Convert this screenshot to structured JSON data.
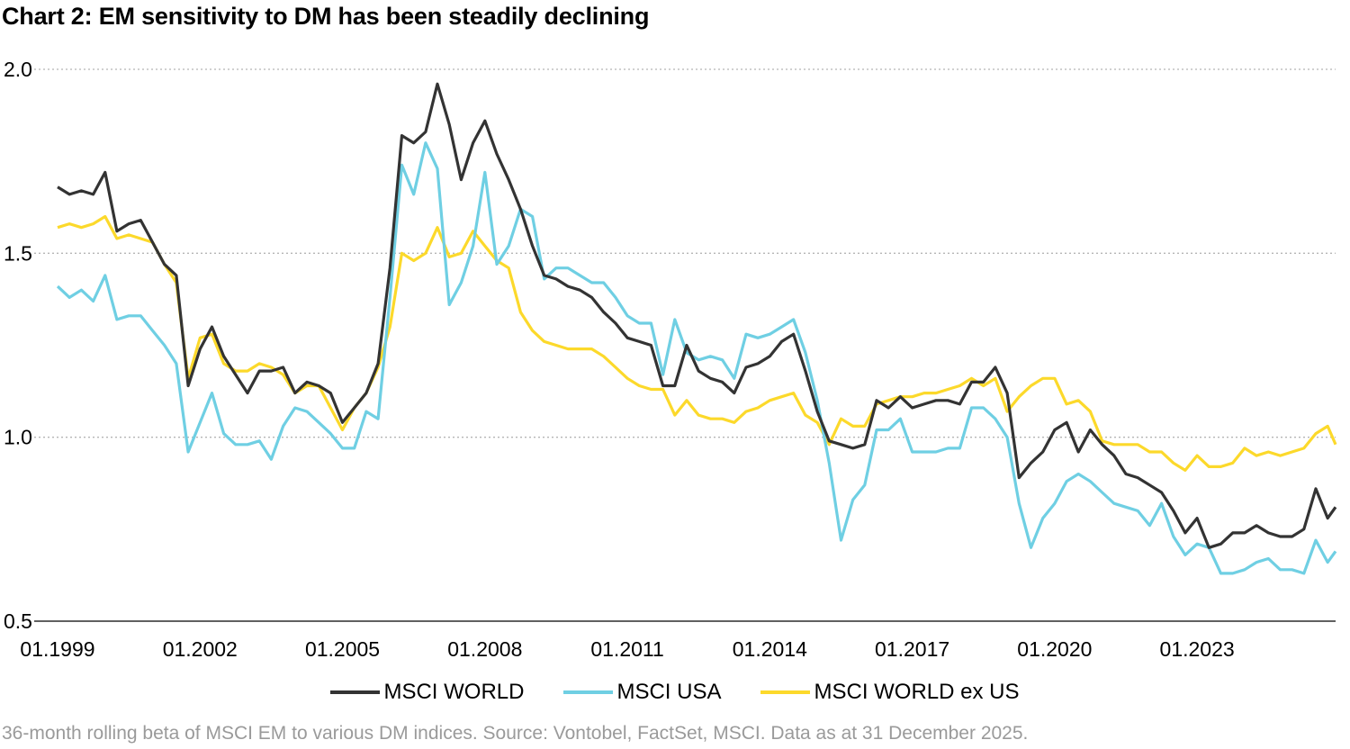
{
  "title": "Chart 2: EM sensitivity to DM has been steadily declining",
  "footer": "36-month rolling beta of MSCI EM to various DM indices. Source: Vontobel, FactSet, MSCI. Data as at 31 December 2025.",
  "chart_data": {
    "type": "line",
    "title": "Chart 2: EM sensitivity to DM has been steadily declining",
    "xlabel": "",
    "ylabel": "",
    "ylim": [
      0.5,
      2.0
    ],
    "yticks": [
      "0.5",
      "1.0",
      "1.5",
      "2.0"
    ],
    "xlim": [
      "1999-01",
      "2025-12"
    ],
    "xticks": [
      "01.1999",
      "01.2002",
      "01.2005",
      "01.2008",
      "01.2011",
      "01.2014",
      "01.2017",
      "01.2020",
      "01.2023"
    ],
    "grid": "horizontal dotted",
    "legend": "bottom",
    "x": [
      "1999-01",
      "1999-04",
      "1999-07",
      "1999-10",
      "2000-01",
      "2000-04",
      "2000-07",
      "2000-10",
      "2001-01",
      "2001-04",
      "2001-07",
      "2001-10",
      "2002-01",
      "2002-04",
      "2002-07",
      "2002-10",
      "2003-01",
      "2003-04",
      "2003-07",
      "2003-10",
      "2004-01",
      "2004-04",
      "2004-07",
      "2004-10",
      "2005-01",
      "2005-04",
      "2005-07",
      "2005-10",
      "2006-01",
      "2006-04",
      "2006-07",
      "2006-10",
      "2007-01",
      "2007-04",
      "2007-07",
      "2007-10",
      "2008-01",
      "2008-04",
      "2008-07",
      "2008-10",
      "2009-01",
      "2009-04",
      "2009-07",
      "2009-10",
      "2010-01",
      "2010-04",
      "2010-07",
      "2010-10",
      "2011-01",
      "2011-04",
      "2011-07",
      "2011-10",
      "2012-01",
      "2012-04",
      "2012-07",
      "2012-10",
      "2013-01",
      "2013-04",
      "2013-07",
      "2013-10",
      "2014-01",
      "2014-04",
      "2014-07",
      "2014-10",
      "2015-01",
      "2015-04",
      "2015-07",
      "2015-10",
      "2016-01",
      "2016-04",
      "2016-07",
      "2016-10",
      "2017-01",
      "2017-04",
      "2017-07",
      "2017-10",
      "2018-01",
      "2018-04",
      "2018-07",
      "2018-10",
      "2019-01",
      "2019-04",
      "2019-07",
      "2019-10",
      "2020-01",
      "2020-04",
      "2020-07",
      "2020-10",
      "2021-01",
      "2021-04",
      "2021-07",
      "2021-10",
      "2022-01",
      "2022-04",
      "2022-07",
      "2022-10",
      "2023-01",
      "2023-04",
      "2023-07",
      "2023-10",
      "2024-01",
      "2024-04",
      "2024-07",
      "2024-10",
      "2025-01",
      "2025-04",
      "2025-07",
      "2025-10",
      "2025-12"
    ],
    "series": [
      {
        "name": "MSCI WORLD",
        "color": "#333333",
        "values": [
          1.68,
          1.66,
          1.67,
          1.66,
          1.72,
          1.56,
          1.58,
          1.59,
          1.53,
          1.47,
          1.44,
          1.14,
          1.24,
          1.3,
          1.22,
          1.17,
          1.12,
          1.18,
          1.18,
          1.19,
          1.12,
          1.15,
          1.14,
          1.12,
          1.04,
          1.08,
          1.12,
          1.2,
          1.46,
          1.82,
          1.8,
          1.83,
          1.96,
          1.85,
          1.7,
          1.8,
          1.86,
          1.77,
          1.7,
          1.62,
          1.52,
          1.44,
          1.43,
          1.41,
          1.4,
          1.38,
          1.34,
          1.31,
          1.27,
          1.26,
          1.25,
          1.14,
          1.14,
          1.25,
          1.18,
          1.16,
          1.15,
          1.12,
          1.19,
          1.2,
          1.22,
          1.26,
          1.28,
          1.18,
          1.07,
          0.99,
          0.98,
          0.97,
          0.98,
          1.1,
          1.08,
          1.11,
          1.08,
          1.09,
          1.1,
          1.1,
          1.09,
          1.15,
          1.15,
          1.19,
          1.12,
          0.89,
          0.93,
          0.96,
          1.02,
          1.04,
          0.96,
          1.02,
          0.98,
          0.95,
          0.9,
          0.89,
          0.87,
          0.85,
          0.8,
          0.74,
          0.78,
          0.7,
          0.71,
          0.74,
          0.74,
          0.76,
          0.74,
          0.73,
          0.73,
          0.75,
          0.86,
          0.78,
          0.81
        ]
      },
      {
        "name": "MSCI USA",
        "color": "#6fcfe3",
        "values": [
          1.41,
          1.38,
          1.4,
          1.37,
          1.44,
          1.32,
          1.33,
          1.33,
          1.29,
          1.25,
          1.2,
          0.96,
          1.04,
          1.12,
          1.01,
          0.98,
          0.98,
          0.99,
          0.94,
          1.03,
          1.08,
          1.07,
          1.04,
          1.01,
          0.97,
          0.97,
          1.07,
          1.05,
          1.38,
          1.74,
          1.66,
          1.8,
          1.73,
          1.36,
          1.42,
          1.52,
          1.72,
          1.47,
          1.52,
          1.62,
          1.6,
          1.43,
          1.46,
          1.46,
          1.44,
          1.42,
          1.42,
          1.38,
          1.33,
          1.31,
          1.31,
          1.17,
          1.32,
          1.23,
          1.21,
          1.22,
          1.21,
          1.16,
          1.28,
          1.27,
          1.28,
          1.3,
          1.32,
          1.23,
          1.1,
          0.93,
          0.72,
          0.83,
          0.87,
          1.02,
          1.02,
          1.05,
          0.96,
          0.96,
          0.96,
          0.97,
          0.97,
          1.08,
          1.08,
          1.05,
          1.0,
          0.82,
          0.7,
          0.78,
          0.82,
          0.88,
          0.9,
          0.88,
          0.85,
          0.82,
          0.81,
          0.8,
          0.76,
          0.82,
          0.73,
          0.68,
          0.71,
          0.7,
          0.63,
          0.63,
          0.64,
          0.66,
          0.67,
          0.64,
          0.64,
          0.63,
          0.72,
          0.66,
          0.69
        ]
      },
      {
        "name": "MSCI WORLD ex US",
        "color": "#fcd92b",
        "values": [
          1.57,
          1.58,
          1.57,
          1.58,
          1.6,
          1.54,
          1.55,
          1.54,
          1.53,
          1.47,
          1.42,
          1.16,
          1.27,
          1.28,
          1.2,
          1.18,
          1.18,
          1.2,
          1.19,
          1.17,
          1.12,
          1.14,
          1.14,
          1.08,
          1.02,
          1.08,
          1.12,
          1.19,
          1.3,
          1.5,
          1.48,
          1.5,
          1.57,
          1.49,
          1.5,
          1.56,
          1.52,
          1.48,
          1.46,
          1.34,
          1.29,
          1.26,
          1.25,
          1.24,
          1.24,
          1.24,
          1.22,
          1.19,
          1.16,
          1.14,
          1.13,
          1.13,
          1.06,
          1.1,
          1.06,
          1.05,
          1.05,
          1.04,
          1.07,
          1.08,
          1.1,
          1.11,
          1.12,
          1.06,
          1.04,
          0.98,
          1.05,
          1.03,
          1.03,
          1.09,
          1.1,
          1.11,
          1.11,
          1.12,
          1.12,
          1.13,
          1.14,
          1.16,
          1.14,
          1.16,
          1.07,
          1.11,
          1.14,
          1.16,
          1.16,
          1.09,
          1.1,
          1.07,
          0.99,
          0.98,
          0.98,
          0.98,
          0.96,
          0.96,
          0.93,
          0.91,
          0.95,
          0.92,
          0.92,
          0.93,
          0.97,
          0.95,
          0.96,
          0.95,
          0.96,
          0.97,
          1.01,
          1.03,
          0.98
        ]
      }
    ]
  }
}
